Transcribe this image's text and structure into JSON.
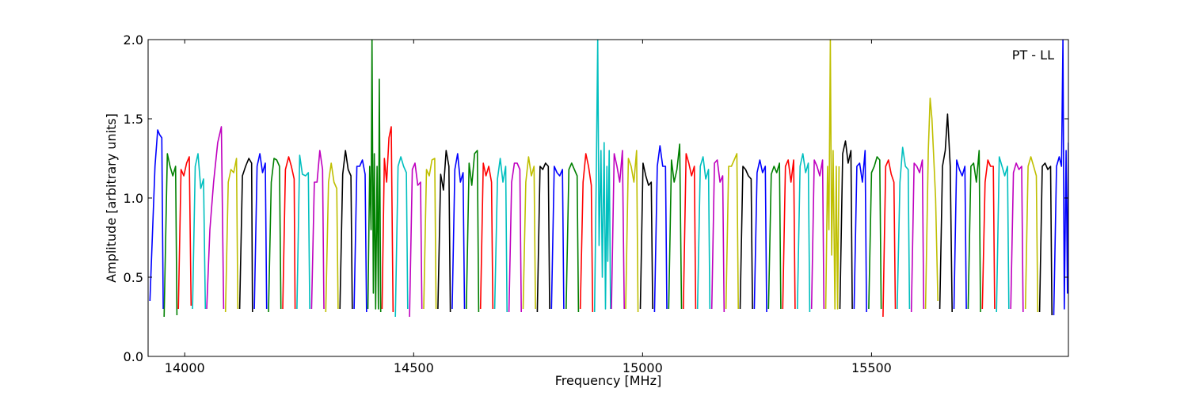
{
  "chart_data": {
    "type": "line",
    "title": "",
    "annotation": "PT - LL",
    "xlabel": "Frequency [MHz]",
    "ylabel": "Amplitude [arbitrary units]",
    "xlim": [
      13920,
      15930
    ],
    "ylim": [
      0.0,
      2.0
    ],
    "xticks": [
      14000,
      14500,
      15000,
      15500
    ],
    "xtick_labels": [
      "14000",
      "14500",
      "15000",
      "15500"
    ],
    "yticks": [
      0.0,
      0.5,
      1.0,
      1.5,
      2.0
    ],
    "ytick_labels": [
      "0.0",
      "0.5",
      "1.0",
      "1.5",
      "2.0"
    ],
    "grid": false,
    "legend": "none",
    "color_cycle": [
      "#0000ff",
      "#008000",
      "#ff0000",
      "#00bfbf",
      "#bf00bf",
      "#bfbf00",
      "#000000"
    ],
    "channel_width_mhz": 31.25,
    "series": [
      {
        "x": [
          13924,
          13935,
          13941,
          13945,
          13950,
          13953
        ],
        "y": [
          0.35,
          1.2,
          1.43,
          1.4,
          1.38,
          0.3
        ]
      },
      {
        "x": [
          13955,
          13962,
          13968,
          13974,
          13980,
          13983
        ],
        "y": [
          0.25,
          1.28,
          1.2,
          1.14,
          1.2,
          0.26
        ]
      },
      {
        "x": [
          13986,
          13992,
          13998,
          14004,
          14010,
          14014
        ],
        "y": [
          0.3,
          1.18,
          1.14,
          1.22,
          1.26,
          0.32
        ]
      },
      {
        "x": [
          14017,
          14023,
          14029,
          14035,
          14041,
          14045
        ],
        "y": [
          0.3,
          1.2,
          1.28,
          1.06,
          1.12,
          0.3
        ]
      },
      {
        "x": [
          14048,
          14055,
          14063,
          14072,
          14080,
          14085
        ],
        "y": [
          0.3,
          0.8,
          1.1,
          1.35,
          1.45,
          0.3
        ]
      },
      {
        "x": [
          14089,
          14095,
          14101,
          14107,
          14113,
          14116
        ],
        "y": [
          0.28,
          1.1,
          1.18,
          1.16,
          1.25,
          0.3
        ]
      },
      {
        "x": [
          14120,
          14126,
          14133,
          14140,
          14146,
          14148
        ],
        "y": [
          0.3,
          1.14,
          1.2,
          1.25,
          1.22,
          0.28
        ]
      },
      {
        "x": [
          14152,
          14158,
          14164,
          14170,
          14176,
          14179
        ],
        "y": [
          0.3,
          1.2,
          1.28,
          1.16,
          1.22,
          0.3
        ]
      },
      {
        "x": [
          14183,
          14189,
          14195,
          14201,
          14207,
          14210
        ],
        "y": [
          0.28,
          1.1,
          1.25,
          1.24,
          1.2,
          0.3
        ]
      },
      {
        "x": [
          14214,
          14220,
          14227,
          14233,
          14239,
          14241
        ],
        "y": [
          0.3,
          1.18,
          1.26,
          1.2,
          1.12,
          0.3
        ]
      },
      {
        "x": [
          14245,
          14251,
          14257,
          14264,
          14270,
          14273
        ],
        "y": [
          0.3,
          1.27,
          1.15,
          1.14,
          1.16,
          0.3
        ]
      },
      {
        "x": [
          14277,
          14283,
          14289,
          14295,
          14301,
          14304
        ],
        "y": [
          0.3,
          1.1,
          1.1,
          1.3,
          1.18,
          0.3
        ]
      },
      {
        "x": [
          14308,
          14314,
          14320,
          14326,
          14332,
          14335
        ],
        "y": [
          0.28,
          1.1,
          1.22,
          1.1,
          1.06,
          0.3
        ]
      },
      {
        "x": [
          14339,
          14345,
          14351,
          14357,
          14363,
          14366
        ],
        "y": [
          0.3,
          1.15,
          1.3,
          1.18,
          1.14,
          0.3
        ]
      },
      {
        "x": [
          14370,
          14376,
          14382,
          14388,
          14394,
          14397
        ],
        "y": [
          0.3,
          1.2,
          1.2,
          1.24,
          1.15,
          0.28
        ]
      },
      {
        "x": [
          14400,
          14404,
          14407,
          14409,
          14412,
          14414,
          14417,
          14420,
          14423,
          14425,
          14428
        ],
        "y": [
          0.3,
          1.2,
          0.8,
          2.0,
          0.4,
          1.28,
          0.3,
          1.2,
          0.3,
          1.75,
          0.28
        ]
      },
      {
        "x": [
          14431,
          14436,
          14441,
          14446,
          14451,
          14455
        ],
        "y": [
          0.3,
          1.25,
          1.1,
          1.38,
          1.45,
          0.28
        ]
      },
      {
        "x": [
          14460,
          14466,
          14472,
          14478,
          14484,
          14487
        ],
        "y": [
          0.25,
          1.2,
          1.26,
          1.2,
          1.16,
          0.3
        ]
      },
      {
        "x": [
          14491,
          14497,
          14503,
          14509,
          14515,
          14518
        ],
        "y": [
          0.25,
          1.18,
          1.22,
          1.08,
          1.1,
          0.3
        ]
      },
      {
        "x": [
          14522,
          14528,
          14534,
          14540,
          14546,
          14549
        ],
        "y": [
          0.3,
          1.18,
          1.14,
          1.24,
          1.25,
          0.3
        ]
      },
      {
        "x": [
          14553,
          14559,
          14565,
          14571,
          14577,
          14580
        ],
        "y": [
          0.3,
          1.15,
          1.05,
          1.3,
          1.2,
          0.28
        ]
      },
      {
        "x": [
          14584,
          14590,
          14596,
          14602,
          14608,
          14611
        ],
        "y": [
          0.3,
          1.18,
          1.28,
          1.1,
          1.16,
          0.3
        ]
      },
      {
        "x": [
          14615,
          14621,
          14627,
          14633,
          14639,
          14642
        ],
        "y": [
          0.3,
          1.22,
          1.08,
          1.28,
          1.3,
          0.28
        ]
      },
      {
        "x": [
          14646,
          14652,
          14658,
          14664,
          14670,
          14673
        ],
        "y": [
          0.3,
          1.22,
          1.14,
          1.2,
          1.1,
          0.3
        ]
      },
      {
        "x": [
          14677,
          14683,
          14689,
          14695,
          14701,
          14704
        ],
        "y": [
          0.3,
          1.12,
          1.25,
          1.1,
          1.2,
          0.28
        ]
      },
      {
        "x": [
          14708,
          14714,
          14720,
          14726,
          14732,
          14735
        ],
        "y": [
          0.28,
          1.1,
          1.22,
          1.22,
          1.18,
          0.28
        ]
      },
      {
        "x": [
          14739,
          14745,
          14751,
          14757,
          14763,
          14766
        ],
        "y": [
          0.3,
          1.1,
          1.26,
          1.14,
          1.2,
          0.3
        ]
      },
      {
        "x": [
          14770,
          14776,
          14782,
          14788,
          14794,
          14797
        ],
        "y": [
          0.28,
          1.2,
          1.18,
          1.22,
          1.2,
          0.3
        ]
      },
      {
        "x": [
          14801,
          14807,
          14813,
          14819,
          14825,
          14828
        ],
        "y": [
          0.3,
          1.2,
          1.16,
          1.14,
          1.18,
          0.3
        ]
      },
      {
        "x": [
          14833,
          14839,
          14845,
          14851,
          14857,
          14860
        ],
        "y": [
          0.3,
          1.18,
          1.22,
          1.18,
          1.14,
          0.28
        ]
      },
      {
        "x": [
          14864,
          14870,
          14876,
          14882,
          14888,
          14891
        ],
        "y": [
          0.3,
          1.1,
          1.28,
          1.2,
          1.08,
          0.28
        ]
      },
      {
        "x": [
          14895,
          14899,
          14902,
          14905,
          14909,
          14912,
          14916,
          14919,
          14922,
          14924,
          14927,
          14930
        ],
        "y": [
          0.28,
          1.2,
          2.0,
          0.7,
          1.3,
          0.5,
          1.35,
          0.3,
          1.2,
          0.6,
          1.3,
          0.3
        ]
      },
      {
        "x": [
          14932,
          14938,
          14944,
          14950,
          14956,
          14960
        ],
        "y": [
          0.3,
          1.28,
          1.2,
          1.1,
          1.3,
          0.3
        ]
      },
      {
        "x": [
          14963,
          14969,
          14975,
          14981,
          14987,
          14990
        ],
        "y": [
          0.3,
          1.25,
          1.2,
          1.1,
          1.3,
          0.28
        ]
      },
      {
        "x": [
          14995,
          15001,
          15007,
          15013,
          15019,
          15022
        ],
        "y": [
          0.3,
          1.22,
          1.14,
          1.08,
          1.1,
          0.3
        ]
      },
      {
        "x": [
          15026,
          15032,
          15038,
          15044,
          15050,
          15053
        ],
        "y": [
          0.28,
          1.2,
          1.33,
          1.2,
          1.2,
          0.3
        ]
      },
      {
        "x": [
          15057,
          15063,
          15069,
          15075,
          15081,
          15085
        ],
        "y": [
          0.3,
          1.24,
          1.1,
          1.18,
          1.34,
          0.3
        ]
      },
      {
        "x": [
          15089,
          15095,
          15101,
          15107,
          15113,
          15116
        ],
        "y": [
          0.3,
          1.28,
          1.22,
          1.14,
          1.2,
          0.3
        ]
      },
      {
        "x": [
          15120,
          15126,
          15132,
          15138,
          15144,
          15147
        ],
        "y": [
          0.3,
          1.2,
          1.26,
          1.12,
          1.18,
          0.3
        ]
      },
      {
        "x": [
          15151,
          15157,
          15163,
          15169,
          15175,
          15178
        ],
        "y": [
          0.3,
          1.22,
          1.24,
          1.1,
          1.14,
          0.28
        ]
      },
      {
        "x": [
          15182,
          15188,
          15194,
          15200,
          15206,
          15209
        ],
        "y": [
          0.3,
          1.2,
          1.2,
          1.24,
          1.28,
          0.3
        ]
      },
      {
        "x": [
          15213,
          15219,
          15225,
          15231,
          15237,
          15240
        ],
        "y": [
          0.3,
          1.2,
          1.18,
          1.14,
          1.12,
          0.3
        ]
      },
      {
        "x": [
          15244,
          15250,
          15256,
          15262,
          15268,
          15271
        ],
        "y": [
          0.3,
          1.16,
          1.24,
          1.16,
          1.2,
          0.28
        ]
      },
      {
        "x": [
          15275,
          15281,
          15287,
          15293,
          15299,
          15302
        ],
        "y": [
          0.3,
          1.15,
          1.2,
          1.16,
          1.22,
          0.3
        ]
      },
      {
        "x": [
          15306,
          15312,
          15318,
          15324,
          15330,
          15333
        ],
        "y": [
          0.3,
          1.2,
          1.24,
          1.1,
          1.24,
          0.3
        ]
      },
      {
        "x": [
          15338,
          15344,
          15350,
          15356,
          15362,
          15365
        ],
        "y": [
          0.3,
          1.2,
          1.28,
          1.16,
          1.22,
          0.28
        ]
      },
      {
        "x": [
          15369,
          15375,
          15381,
          15387,
          15393,
          15396
        ],
        "y": [
          0.3,
          1.24,
          1.2,
          1.14,
          1.24,
          0.3
        ]
      },
      {
        "x": [
          15400,
          15404,
          15407,
          15410,
          15413,
          15416,
          15420,
          15423,
          15426,
          15429
        ],
        "y": [
          0.3,
          1.2,
          0.8,
          2.0,
          0.64,
          1.3,
          0.3,
          1.2,
          0.3,
          1.2
        ]
      },
      {
        "x": [
          15431,
          15437,
          15443,
          15449,
          15455,
          15458
        ],
        "y": [
          0.3,
          1.28,
          1.36,
          1.22,
          1.3,
          0.3
        ]
      },
      {
        "x": [
          15462,
          15468,
          15474,
          15480,
          15486,
          15489
        ],
        "y": [
          0.3,
          1.2,
          1.22,
          1.1,
          1.3,
          0.28
        ]
      },
      {
        "x": [
          15494,
          15500,
          15506,
          15512,
          15518,
          15521
        ],
        "y": [
          0.3,
          1.16,
          1.2,
          1.26,
          1.24,
          0.3
        ]
      },
      {
        "x": [
          15525,
          15531,
          15537,
          15543,
          15549,
          15552
        ],
        "y": [
          0.25,
          1.2,
          1.24,
          1.15,
          1.1,
          0.3
        ]
      },
      {
        "x": [
          15556,
          15562,
          15568,
          15574,
          15580,
          15583
        ],
        "y": [
          0.3,
          1.1,
          1.32,
          1.2,
          1.18,
          0.3
        ]
      },
      {
        "x": [
          15587,
          15593,
          15599,
          15605,
          15611,
          15614
        ],
        "y": [
          0.28,
          1.22,
          1.2,
          1.16,
          1.24,
          0.3
        ]
      },
      {
        "x": [
          15618,
          15624,
          15628,
          15632,
          15640,
          15645
        ],
        "y": [
          0.3,
          1.3,
          1.63,
          1.5,
          1.0,
          0.35
        ]
      },
      {
        "x": [
          15649,
          15655,
          15661,
          15666,
          15672,
          15676
        ],
        "y": [
          0.3,
          1.2,
          1.3,
          1.53,
          1.2,
          0.28
        ]
      },
      {
        "x": [
          15680,
          15686,
          15692,
          15698,
          15704,
          15707
        ],
        "y": [
          0.3,
          1.24,
          1.18,
          1.14,
          1.2,
          0.3
        ]
      },
      {
        "x": [
          15711,
          15717,
          15723,
          15729,
          15735,
          15738
        ],
        "y": [
          0.3,
          1.2,
          1.22,
          1.1,
          1.3,
          0.28
        ]
      },
      {
        "x": [
          15742,
          15748,
          15754,
          15760,
          15766,
          15769
        ],
        "y": [
          0.3,
          1.1,
          1.24,
          1.2,
          1.2,
          0.3
        ]
      },
      {
        "x": [
          15773,
          15779,
          15785,
          15791,
          15797,
          15800
        ],
        "y": [
          0.28,
          1.26,
          1.2,
          1.14,
          1.2,
          0.3
        ]
      },
      {
        "x": [
          15804,
          15810,
          15816,
          15822,
          15828,
          15831
        ],
        "y": [
          0.3,
          1.16,
          1.22,
          1.18,
          1.2,
          0.28
        ]
      },
      {
        "x": [
          15836,
          15842,
          15848,
          15854,
          15860,
          15863
        ],
        "y": [
          0.3,
          1.2,
          1.26,
          1.2,
          1.14,
          0.28
        ]
      },
      {
        "x": [
          15867,
          15873,
          15879,
          15885,
          15891,
          15894
        ],
        "y": [
          0.28,
          1.2,
          1.22,
          1.18,
          1.2,
          0.26
        ]
      },
      {
        "x": [
          15898,
          15904,
          15910,
          15915,
          15918,
          15921,
          15925,
          15928,
          15930
        ],
        "y": [
          0.26,
          1.2,
          1.26,
          1.2,
          2.0,
          0.3,
          1.3,
          0.4,
          1.35
        ]
      }
    ]
  }
}
